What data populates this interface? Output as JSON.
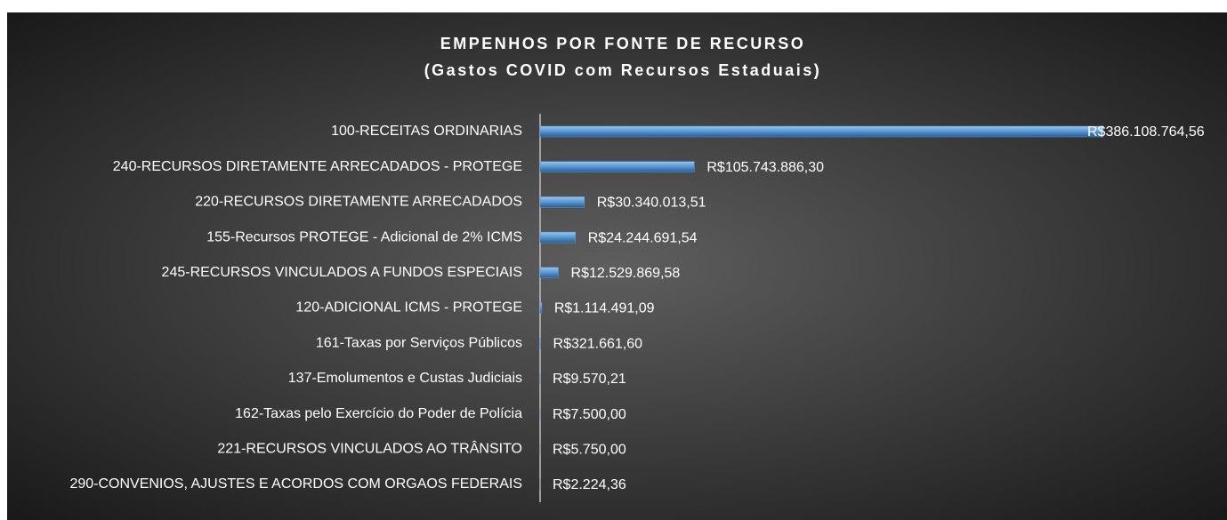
{
  "chart_data": {
    "type": "hbar",
    "title": "EMPENHOS POR FONTE DE RECURSO",
    "subtitle": "(Gastos COVID com Recursos Estaduais)",
    "categories": [
      "100-RECEITAS ORDINARIAS",
      "240-RECURSOS DIRETAMENTE ARRECADADOS - PROTEGE",
      "220-RECURSOS DIRETAMENTE ARRECADADOS",
      "155-Recursos PROTEGE - Adicional de 2% ICMS",
      "245-RECURSOS VINCULADOS A FUNDOS ESPECIAIS",
      "120-ADICIONAL ICMS - PROTEGE",
      "161-Taxas por Serviços Públicos",
      "137-Emolumentos e Custas Judiciais",
      "162-Taxas pelo Exercício do Poder de Polícia",
      "221-RECURSOS VINCULADOS AO TRÂNSITO",
      "290-CONVENIOS, AJUSTES E ACORDOS COM ORGAOS FEDERAIS"
    ],
    "values": [
      386108764.56,
      105743886.3,
      30340013.51,
      24244691.54,
      12529869.58,
      1114491.09,
      321661.6,
      9570.21,
      7500.0,
      5750.0,
      2224.36
    ],
    "value_labels": [
      "R$386.108.764,56",
      "R$105.743.886,30",
      "R$30.340.013,51",
      "R$24.244.691,54",
      "R$12.529.869,58",
      "R$1.114.491,09",
      "R$321.661,60",
      "R$9.570,21",
      "R$7.500,00",
      "R$5.750,00",
      "R$2.224,36"
    ],
    "color": "#5b9bd5"
  }
}
